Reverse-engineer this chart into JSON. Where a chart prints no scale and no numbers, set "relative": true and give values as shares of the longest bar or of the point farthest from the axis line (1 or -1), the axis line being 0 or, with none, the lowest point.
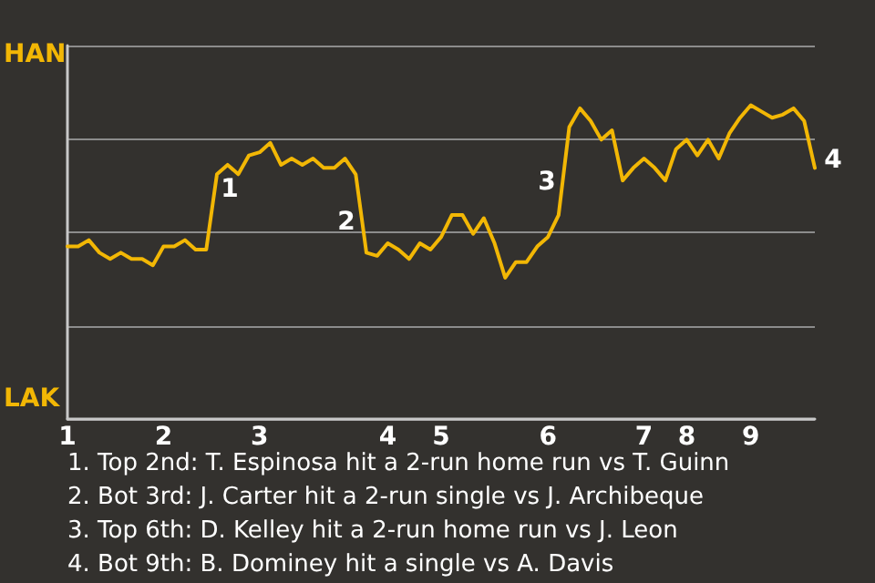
{
  "chart_data": {
    "type": "line",
    "relative": true,
    "grid": "y",
    "marker": "none",
    "line_style": "solid",
    "categories": [
      "1",
      null,
      null,
      null,
      null,
      null,
      null,
      null,
      null,
      "2",
      null,
      null,
      null,
      null,
      null,
      null,
      null,
      null,
      "3",
      null,
      null,
      null,
      null,
      null,
      null,
      null,
      null,
      null,
      null,
      null,
      "4",
      null,
      null,
      null,
      null,
      "5",
      null,
      null,
      null,
      null,
      null,
      null,
      null,
      null,
      null,
      "6",
      null,
      null,
      null,
      null,
      null,
      null,
      null,
      null,
      "7",
      null,
      null,
      null,
      "8",
      null,
      null,
      null,
      null,
      null,
      "9",
      null,
      null,
      null,
      null,
      null,
      null
    ],
    "series": [
      {
        "color": "#f2b705",
        "values": [
          0.55,
          0.55,
          0.57,
          0.53,
          0.51,
          0.53,
          0.51,
          0.51,
          0.49,
          0.55,
          0.55,
          0.57,
          0.54,
          0.54,
          0.78,
          0.81,
          0.78,
          0.84,
          0.85,
          0.88,
          0.81,
          0.83,
          0.81,
          0.83,
          0.8,
          0.8,
          0.83,
          0.78,
          0.53,
          0.52,
          0.56,
          0.54,
          0.51,
          0.56,
          0.54,
          0.58,
          0.65,
          0.65,
          0.59,
          0.64,
          0.56,
          0.45,
          0.5,
          0.5,
          0.55,
          0.58,
          0.65,
          0.93,
          0.99,
          0.95,
          0.89,
          0.92,
          0.76,
          0.8,
          0.83,
          0.8,
          0.76,
          0.86,
          0.89,
          0.84,
          0.89,
          0.83,
          0.91,
          0.96,
          1.0,
          0.98,
          0.96,
          0.97,
          0.99,
          0.95,
          0.8
        ]
      }
    ],
    "annotations": [
      "HAN",
      "LAK",
      "1",
      "2",
      "3",
      "4",
      "1. Top 2nd: T. Espinosa hit a 2-run home run vs T. Guinn",
      "2. Bot 3rd: J. Carter hit a 2-run single vs J. Archibeque",
      "3. Top 6th: D. Kelley hit a 2-run home run vs J. Leon",
      "4. Bot 9th: B. Dominey hit a single vs A. Davis"
    ]
  }
}
